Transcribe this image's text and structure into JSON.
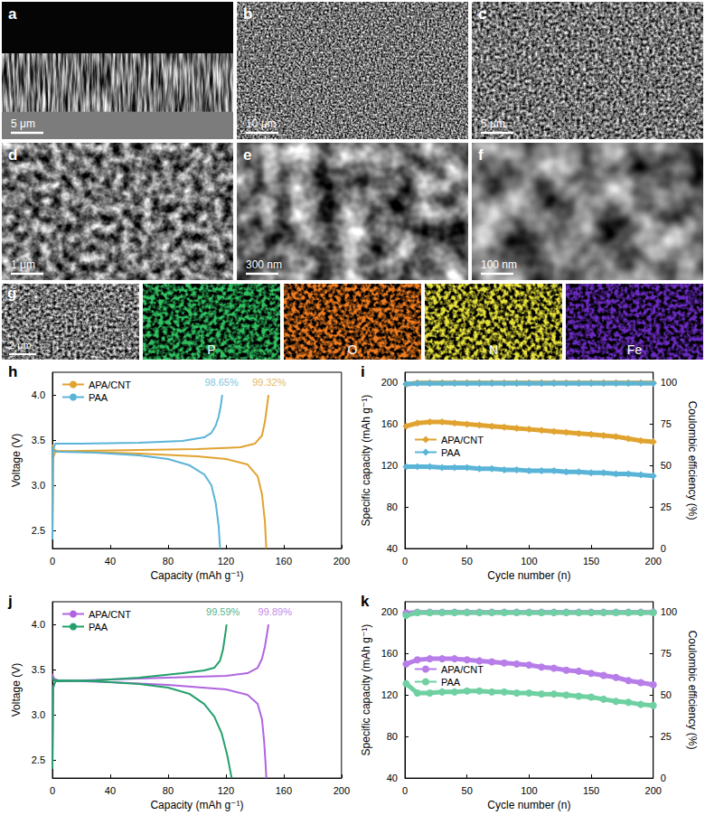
{
  "sem_images": [
    {
      "label": "a",
      "scale_bar": "5 μm"
    },
    {
      "label": "b",
      "scale_bar": "10 μm"
    },
    {
      "label": "c",
      "scale_bar": "5 μm"
    },
    {
      "label": "d",
      "scale_bar": "1 μm"
    },
    {
      "label": "e",
      "scale_bar": "300 nm"
    },
    {
      "label": "f",
      "scale_bar": "100 nm"
    }
  ],
  "eds": {
    "label": "g",
    "scale_bar": "2 μm",
    "maps": [
      {
        "element": "P",
        "color": "#2fc060"
      },
      {
        "element": "O",
        "color": "#f07c1e"
      },
      {
        "element": "N",
        "color": "#e6e03a"
      },
      {
        "element": "Fe",
        "color": "#6a2ac0"
      }
    ]
  },
  "chart_data": [
    {
      "label": "h",
      "type": "line",
      "xlabel": "Capacity (mAh g⁻¹)",
      "ylabel": "Voltage (V)",
      "xlim": [
        0,
        200
      ],
      "xticks": [
        0,
        40,
        80,
        120,
        160,
        200
      ],
      "ylim": [
        2.3,
        4.25
      ],
      "yticks": [
        2.5,
        {
          "value": 3,
          "label": "3.0"
        },
        3.5,
        {
          "value": 4,
          "label": "4.0"
        }
      ],
      "grid": false,
      "legend": "upper left",
      "series": [
        {
          "name": "APA/CNT",
          "color": "#e0a330",
          "line_style": "solid",
          "curves": [
            {
              "x": [
                0,
                0.5,
                2,
                20,
                60,
                100,
                130,
                140,
                145,
                147,
                148.5,
                149.5
              ],
              "values": [
                2.4,
                3.3,
                3.37,
                3.38,
                3.39,
                3.4,
                3.42,
                3.46,
                3.55,
                3.7,
                3.88,
                4.0
              ]
            },
            {
              "x": [
                0,
                1,
                3,
                20,
                60,
                100,
                120,
                135,
                142,
                145,
                147,
                148
              ],
              "values": [
                3.45,
                3.4,
                3.38,
                3.37,
                3.35,
                3.32,
                3.29,
                3.23,
                3.1,
                2.9,
                2.6,
                2.3
              ]
            }
          ]
        },
        {
          "name": "PAA",
          "color": "#5ab4d8",
          "line_style": "solid",
          "curves": [
            {
              "x": [
                0,
                0.5,
                2,
                20,
                60,
                90,
                105,
                110,
                113,
                115,
                116.5,
                117.5
              ],
              "values": [
                2.4,
                3.4,
                3.46,
                3.46,
                3.47,
                3.49,
                3.53,
                3.58,
                3.66,
                3.76,
                3.88,
                4.0
              ]
            },
            {
              "x": [
                0,
                1,
                5,
                30,
                60,
                80,
                95,
                105,
                110,
                113,
                115,
                116
              ],
              "values": [
                3.42,
                3.38,
                3.37,
                3.36,
                3.33,
                3.29,
                3.22,
                3.12,
                3.0,
                2.8,
                2.55,
                2.3
              ]
            }
          ]
        }
      ],
      "annotations": [
        {
          "text": "98.65%",
          "x": 117,
          "y": 4.14,
          "color": "#5ab4d8"
        },
        {
          "text": "99.32%",
          "x": 150,
          "y": 4.14,
          "color": "#e0a330"
        }
      ]
    },
    {
      "label": "i",
      "type": "line",
      "xlabel": "Cycle number (n)",
      "ylabel": "Specific capacity (mAh g⁻¹)",
      "y2label": "Coulombic efficiency (%)",
      "xlim": [
        0,
        200
      ],
      "xticks": [
        0,
        50,
        100,
        150,
        200
      ],
      "ylim": [
        40,
        210
      ],
      "yticks": [
        40,
        80,
        120,
        160,
        200
      ],
      "y2lim": [
        0,
        106.25
      ],
      "y2ticks": [
        0,
        25,
        50,
        75,
        100
      ],
      "grid": false,
      "legend": "lower left",
      "x": [
        1,
        10,
        20,
        30,
        40,
        50,
        60,
        70,
        80,
        90,
        100,
        110,
        120,
        130,
        140,
        150,
        160,
        170,
        180,
        190,
        200
      ],
      "series": [
        {
          "name": "APA/CNT",
          "color": "#e0a330",
          "marker": "diamond",
          "values": [
            158,
            161,
            162,
            162,
            161,
            160,
            159,
            158,
            157,
            156,
            155,
            154,
            153,
            152,
            151,
            150,
            149,
            148,
            146,
            144,
            143
          ]
        },
        {
          "name": "PAA",
          "color": "#5ab4d8",
          "marker": "diamond",
          "values": [
            119,
            119,
            119,
            118,
            118,
            118,
            117,
            117,
            116,
            116,
            115,
            115,
            115,
            114,
            114,
            113,
            113,
            112,
            112,
            111,
            110
          ]
        },
        {
          "name": "APA/CNT",
          "color": "#e0a330",
          "marker": "diamond",
          "axis": "y2",
          "values": [
            99.0,
            99.8,
            99.8,
            99.8,
            99.8,
            99.8,
            99.8,
            99.8,
            99.8,
            99.8,
            99.8,
            99.8,
            99.8,
            99.8,
            99.8,
            99.8,
            99.8,
            99.8,
            99.8,
            99.8,
            99.8
          ]
        },
        {
          "name": "PAA",
          "color": "#5ab4d8",
          "marker": "diamond",
          "axis": "y2",
          "values": [
            99.2,
            99.6,
            99.6,
            99.6,
            99.6,
            99.6,
            99.6,
            99.6,
            99.6,
            99.6,
            99.6,
            99.6,
            99.6,
            99.6,
            99.6,
            99.6,
            99.6,
            99.6,
            99.6,
            99.6,
            99.6
          ]
        }
      ]
    },
    {
      "label": "j",
      "type": "line",
      "xlabel": "Capacity (mAh g⁻¹)",
      "ylabel": "Voltage (V)",
      "xlim": [
        0,
        200
      ],
      "xticks": [
        0,
        40,
        80,
        120,
        160,
        200
      ],
      "ylim": [
        2.3,
        4.25
      ],
      "yticks": [
        2.5,
        {
          "value": 3,
          "label": "3.0"
        },
        3.5,
        {
          "value": 4,
          "label": "4.0"
        }
      ],
      "grid": false,
      "legend": "upper left",
      "series": [
        {
          "name": "APA/CNT",
          "color": "#b065e0",
          "line_style": "solid",
          "curves": [
            {
              "x": [
                0,
                0.5,
                2,
                40,
                80,
                120,
                135,
                142,
                145,
                147,
                148.5,
                149.5
              ],
              "values": [
                2.4,
                3.3,
                3.37,
                3.39,
                3.41,
                3.43,
                3.46,
                3.52,
                3.62,
                3.75,
                3.9,
                4.0
              ]
            },
            {
              "x": [
                0,
                1,
                4,
                40,
                80,
                120,
                135,
                142,
                145,
                146.5,
                147.5,
                148
              ],
              "values": [
                3.45,
                3.4,
                3.38,
                3.36,
                3.33,
                3.28,
                3.22,
                3.12,
                2.95,
                2.7,
                2.45,
                2.3
              ]
            }
          ]
        },
        {
          "name": "PAA",
          "color": "#23a06b",
          "line_style": "solid",
          "curves": [
            {
              "x": [
                0,
                0.5,
                2,
                30,
                60,
                90,
                105,
                112,
                116,
                118,
                119.5,
                120.5
              ],
              "values": [
                2.4,
                3.3,
                3.37,
                3.38,
                3.41,
                3.46,
                3.49,
                3.52,
                3.6,
                3.72,
                3.88,
                4.0
              ]
            },
            {
              "x": [
                0,
                1,
                5,
                30,
                60,
                80,
                95,
                105,
                112,
                117,
                121,
                124
              ],
              "values": [
                3.42,
                3.38,
                3.38,
                3.37,
                3.34,
                3.3,
                3.23,
                3.12,
                2.98,
                2.8,
                2.55,
                2.3
              ]
            }
          ]
        }
      ],
      "annotations": [
        {
          "text": "99.59%",
          "x": 118,
          "y": 4.14,
          "color": "#23a06b"
        },
        {
          "text": "99.89%",
          "x": 154,
          "y": 4.14,
          "color": "#b065e0"
        }
      ]
    },
    {
      "label": "k",
      "type": "line",
      "xlabel": "Cycle number (n)",
      "ylabel": "Specific capacity (mAh g⁻¹)",
      "y2label": "Coulombic efficiency (%)",
      "xlim": [
        0,
        200
      ],
      "xticks": [
        0,
        50,
        100,
        150,
        200
      ],
      "ylim": [
        40,
        210
      ],
      "yticks": [
        40,
        80,
        120,
        160,
        200
      ],
      "y2lim": [
        0,
        106.25
      ],
      "y2ticks": [
        0,
        25,
        50,
        75,
        100
      ],
      "grid": false,
      "legend": "lower left",
      "x": [
        1,
        10,
        20,
        30,
        40,
        50,
        60,
        70,
        80,
        90,
        100,
        110,
        120,
        130,
        140,
        150,
        160,
        170,
        180,
        190,
        200
      ],
      "series": [
        {
          "name": "APA/CNT",
          "color": "#b77de8",
          "marker": "circle",
          "values": [
            150,
            154,
            155,
            155,
            155,
            154,
            153,
            152,
            151,
            150,
            149,
            147,
            146,
            144,
            143,
            141,
            139,
            137,
            134,
            132,
            130
          ]
        },
        {
          "name": "PAA",
          "color": "#6fd0a2",
          "marker": "circle",
          "values": [
            131,
            122,
            122,
            123,
            123,
            124,
            124,
            123,
            123,
            122,
            122,
            121,
            121,
            120,
            119,
            118,
            116,
            114,
            113,
            111,
            110
          ]
        },
        {
          "name": "APA/CNT",
          "color": "#b77de8",
          "marker": "circle",
          "axis": "y2",
          "values": [
            99.5,
            99.9,
            99.9,
            99.9,
            99.9,
            99.9,
            99.9,
            99.9,
            99.9,
            99.9,
            99.9,
            99.9,
            99.9,
            99.9,
            99.9,
            99.9,
            99.9,
            99.9,
            99.9,
            99.9,
            99.9
          ]
        },
        {
          "name": "PAA",
          "color": "#6fd0a2",
          "marker": "circle",
          "axis": "y2",
          "values": [
            98.0,
            99.7,
            99.7,
            99.7,
            99.7,
            99.7,
            99.7,
            99.7,
            99.7,
            99.7,
            99.7,
            99.7,
            99.7,
            99.7,
            99.7,
            99.7,
            99.7,
            99.7,
            99.7,
            99.7,
            99.7
          ]
        }
      ]
    }
  ]
}
